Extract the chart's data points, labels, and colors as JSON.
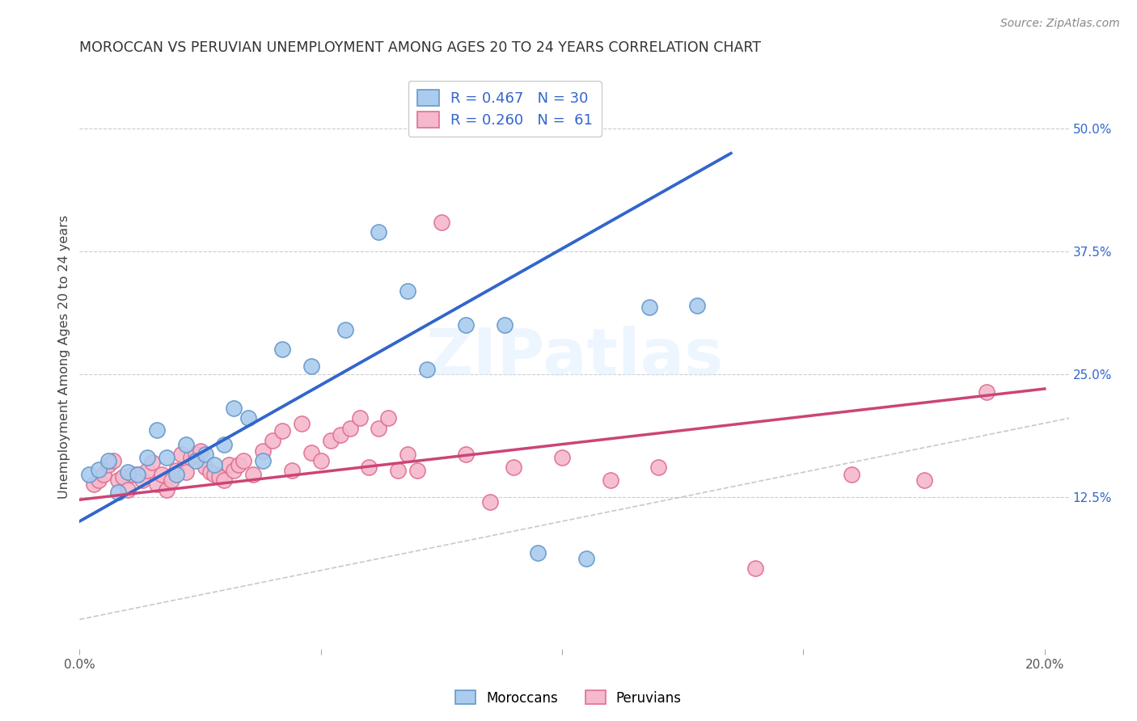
{
  "title": "MOROCCAN VS PERUVIAN UNEMPLOYMENT AMONG AGES 20 TO 24 YEARS CORRELATION CHART",
  "source": "Source: ZipAtlas.com",
  "ylabel": "Unemployment Among Ages 20 to 24 years",
  "xlim": [
    0.0,
    0.205
  ],
  "ylim": [
    -0.03,
    0.565
  ],
  "yticks_right": [
    0.125,
    0.25,
    0.375,
    0.5
  ],
  "ytick_right_labels": [
    "12.5%",
    "25.0%",
    "37.5%",
    "50.0%"
  ],
  "moroccan_color": "#aaccee",
  "moroccan_edge": "#6699cc",
  "peruvian_color": "#f5b8cc",
  "peruvian_edge": "#e07090",
  "moroccan_line_color": "#3366cc",
  "peruvian_line_color": "#cc4477",
  "diagonal_line_color": "#bbbbbb",
  "background_color": "#ffffff",
  "grid_color": "#cccccc",
  "legend_R_color": "#3366cc",
  "legend_N_color": "#22aa22",
  "moroccan_label": "Moroccans",
  "peruvian_label": "Peruvians",
  "moroccan_R": "0.467",
  "moroccan_N": "30",
  "peruvian_R": "0.260",
  "peruvian_N": "61",
  "watermark": "ZIPatlas",
  "blue_line_x0": 0.0,
  "blue_line_y0": 0.1,
  "blue_line_x1": 0.135,
  "blue_line_y1": 0.475,
  "pink_line_x0": 0.0,
  "pink_line_y0": 0.122,
  "pink_line_x1": 0.2,
  "pink_line_y1": 0.235,
  "moroccan_x": [
    0.002,
    0.004,
    0.006,
    0.008,
    0.01,
    0.012,
    0.014,
    0.016,
    0.018,
    0.02,
    0.022,
    0.024,
    0.026,
    0.028,
    0.03,
    0.032,
    0.035,
    0.038,
    0.042,
    0.048,
    0.055,
    0.062,
    0.068,
    0.072,
    0.08,
    0.088,
    0.095,
    0.105,
    0.118,
    0.128
  ],
  "moroccan_y": [
    0.148,
    0.153,
    0.162,
    0.13,
    0.15,
    0.148,
    0.165,
    0.193,
    0.165,
    0.148,
    0.178,
    0.162,
    0.168,
    0.158,
    0.178,
    0.215,
    0.205,
    0.162,
    0.275,
    0.258,
    0.295,
    0.395,
    0.335,
    0.255,
    0.3,
    0.3,
    0.068,
    0.062,
    0.318,
    0.32
  ],
  "peruvian_x": [
    0.003,
    0.004,
    0.005,
    0.006,
    0.007,
    0.008,
    0.009,
    0.01,
    0.011,
    0.012,
    0.013,
    0.014,
    0.015,
    0.016,
    0.017,
    0.018,
    0.019,
    0.02,
    0.021,
    0.022,
    0.023,
    0.024,
    0.025,
    0.026,
    0.027,
    0.028,
    0.029,
    0.03,
    0.031,
    0.032,
    0.033,
    0.034,
    0.036,
    0.038,
    0.04,
    0.042,
    0.044,
    0.046,
    0.048,
    0.05,
    0.052,
    0.054,
    0.056,
    0.058,
    0.06,
    0.062,
    0.064,
    0.066,
    0.068,
    0.07,
    0.075,
    0.08,
    0.085,
    0.09,
    0.1,
    0.11,
    0.12,
    0.14,
    0.16,
    0.175,
    0.188
  ],
  "peruvian_y": [
    0.138,
    0.142,
    0.148,
    0.158,
    0.162,
    0.142,
    0.145,
    0.132,
    0.148,
    0.148,
    0.142,
    0.152,
    0.16,
    0.138,
    0.148,
    0.132,
    0.142,
    0.152,
    0.168,
    0.15,
    0.165,
    0.168,
    0.172,
    0.155,
    0.15,
    0.148,
    0.145,
    0.142,
    0.158,
    0.152,
    0.158,
    0.162,
    0.148,
    0.172,
    0.182,
    0.192,
    0.152,
    0.2,
    0.17,
    0.162,
    0.182,
    0.188,
    0.195,
    0.205,
    0.155,
    0.195,
    0.205,
    0.152,
    0.168,
    0.152,
    0.405,
    0.168,
    0.12,
    0.155,
    0.165,
    0.142,
    0.155,
    0.052,
    0.148,
    0.142,
    0.232
  ]
}
